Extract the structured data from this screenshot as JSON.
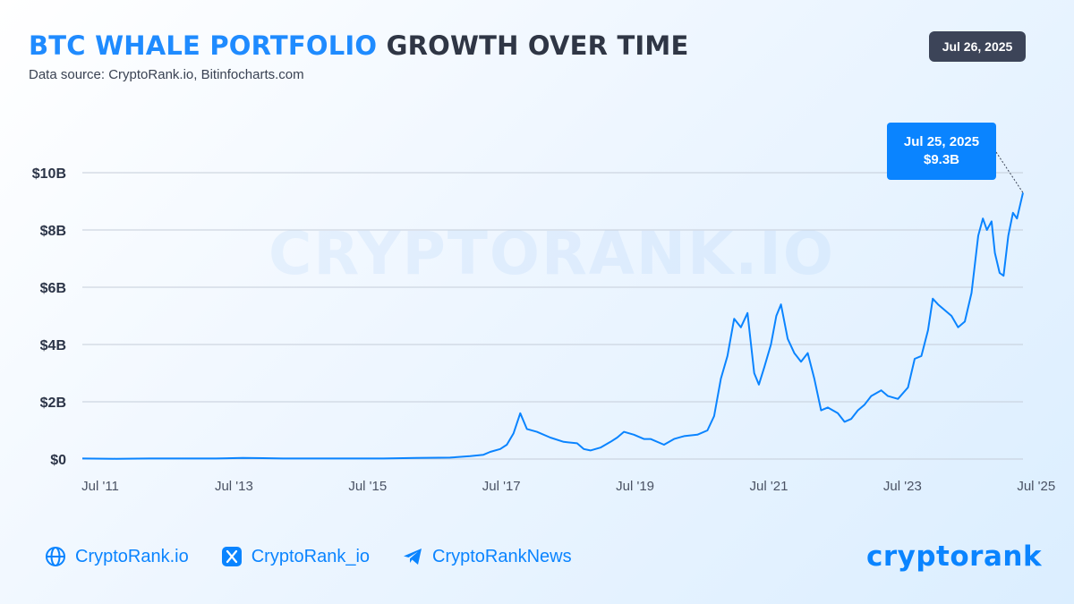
{
  "header": {
    "title_highlight": "BTC WHALE PORTFOLIO",
    "title_rest": "GROWTH OVER TIME",
    "subtitle": "Data source: CryptoRank.io, Bitinfocharts.com",
    "date_badge": "Jul 26, 2025"
  },
  "watermark": "CRYPTORANK.IO",
  "callout": {
    "date": "Jul 25, 2025",
    "value": "$9.3B"
  },
  "footer": {
    "website": "CryptoRank.io",
    "x_handle": "CryptoRank_io",
    "telegram": "CryptoRankNews",
    "brand": "cryptorank"
  },
  "colors": {
    "accent": "#1f8bff",
    "line": "#0a84ff",
    "badge": "#3c4458",
    "grid": "#c5cdd8"
  },
  "chart_data": {
    "type": "line",
    "title": "BTC WHALE PORTFOLIO GROWTH OVER TIME",
    "xlabel": "",
    "ylabel": "",
    "x_unit": "year",
    "xlim": [
      2011.5,
      2025.57
    ],
    "ylim": [
      0,
      10
    ],
    "y_ticks": [
      {
        "value": 0,
        "label": "$0"
      },
      {
        "value": 2,
        "label": "$2B"
      },
      {
        "value": 4,
        "label": "$4B"
      },
      {
        "value": 6,
        "label": "$6B"
      },
      {
        "value": 8,
        "label": "$8B"
      },
      {
        "value": 10,
        "label": "$10B"
      }
    ],
    "x_ticks": [
      {
        "value": 2011.5,
        "label": "Jul '11"
      },
      {
        "value": 2013.5,
        "label": "Jul '13"
      },
      {
        "value": 2015.5,
        "label": "Jul '15"
      },
      {
        "value": 2017.5,
        "label": "Jul '17"
      },
      {
        "value": 2019.5,
        "label": "Jul '19"
      },
      {
        "value": 2021.5,
        "label": "Jul '21"
      },
      {
        "value": 2023.5,
        "label": "Jul '23"
      },
      {
        "value": 2025.5,
        "label": "Jul '25"
      }
    ],
    "grid": true,
    "series": [
      {
        "name": "",
        "points": [
          [
            2011.5,
            0.02
          ],
          [
            2012.0,
            0.01
          ],
          [
            2012.5,
            0.02
          ],
          [
            2013.0,
            0.02
          ],
          [
            2013.5,
            0.02
          ],
          [
            2013.9,
            0.04
          ],
          [
            2014.2,
            0.03
          ],
          [
            2014.5,
            0.02
          ],
          [
            2015.0,
            0.02
          ],
          [
            2015.5,
            0.02
          ],
          [
            2016.0,
            0.02
          ],
          [
            2016.5,
            0.04
          ],
          [
            2017.0,
            0.05
          ],
          [
            2017.3,
            0.1
          ],
          [
            2017.5,
            0.15
          ],
          [
            2017.6,
            0.25
          ],
          [
            2017.75,
            0.35
          ],
          [
            2017.85,
            0.5
          ],
          [
            2017.95,
            0.9
          ],
          [
            2018.05,
            1.6
          ],
          [
            2018.15,
            1.05
          ],
          [
            2018.3,
            0.95
          ],
          [
            2018.5,
            0.75
          ],
          [
            2018.7,
            0.6
          ],
          [
            2018.9,
            0.55
          ],
          [
            2019.0,
            0.35
          ],
          [
            2019.1,
            0.3
          ],
          [
            2019.25,
            0.4
          ],
          [
            2019.4,
            0.6
          ],
          [
            2019.5,
            0.75
          ],
          [
            2019.6,
            0.95
          ],
          [
            2019.75,
            0.85
          ],
          [
            2019.9,
            0.7
          ],
          [
            2020.0,
            0.7
          ],
          [
            2020.2,
            0.5
          ],
          [
            2020.35,
            0.7
          ],
          [
            2020.5,
            0.8
          ],
          [
            2020.7,
            0.85
          ],
          [
            2020.85,
            1.0
          ],
          [
            2020.95,
            1.5
          ],
          [
            2021.05,
            2.8
          ],
          [
            2021.15,
            3.6
          ],
          [
            2021.25,
            4.9
          ],
          [
            2021.35,
            4.6
          ],
          [
            2021.45,
            5.1
          ],
          [
            2021.55,
            3.0
          ],
          [
            2021.62,
            2.6
          ],
          [
            2021.7,
            3.2
          ],
          [
            2021.8,
            4.0
          ],
          [
            2021.88,
            5.0
          ],
          [
            2021.95,
            5.4
          ],
          [
            2022.05,
            4.2
          ],
          [
            2022.15,
            3.7
          ],
          [
            2022.25,
            3.4
          ],
          [
            2022.35,
            3.7
          ],
          [
            2022.45,
            2.8
          ],
          [
            2022.55,
            1.7
          ],
          [
            2022.65,
            1.8
          ],
          [
            2022.8,
            1.6
          ],
          [
            2022.9,
            1.3
          ],
          [
            2023.0,
            1.4
          ],
          [
            2023.1,
            1.7
          ],
          [
            2023.2,
            1.9
          ],
          [
            2023.3,
            2.2
          ],
          [
            2023.45,
            2.4
          ],
          [
            2023.55,
            2.2
          ],
          [
            2023.7,
            2.1
          ],
          [
            2023.85,
            2.5
          ],
          [
            2023.95,
            3.5
          ],
          [
            2024.05,
            3.6
          ],
          [
            2024.15,
            4.5
          ],
          [
            2024.22,
            5.6
          ],
          [
            2024.3,
            5.4
          ],
          [
            2024.4,
            5.2
          ],
          [
            2024.5,
            5.0
          ],
          [
            2024.6,
            4.6
          ],
          [
            2024.7,
            4.8
          ],
          [
            2024.8,
            5.8
          ],
          [
            2024.9,
            7.8
          ],
          [
            2024.97,
            8.4
          ],
          [
            2025.03,
            8.0
          ],
          [
            2025.1,
            8.3
          ],
          [
            2025.15,
            7.2
          ],
          [
            2025.22,
            6.5
          ],
          [
            2025.28,
            6.4
          ],
          [
            2025.35,
            7.8
          ],
          [
            2025.42,
            8.6
          ],
          [
            2025.48,
            8.4
          ],
          [
            2025.53,
            8.9
          ],
          [
            2025.57,
            9.3
          ]
        ]
      }
    ]
  }
}
